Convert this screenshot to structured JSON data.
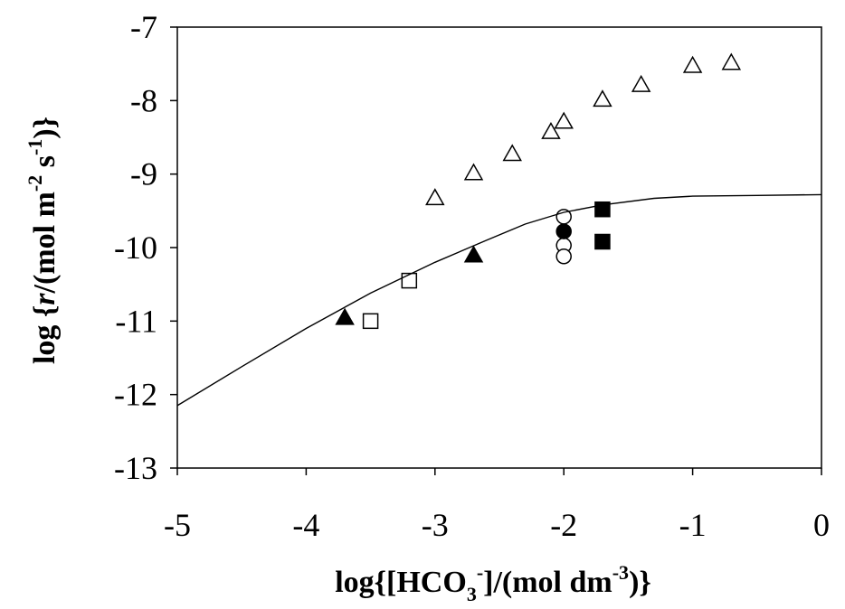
{
  "chart_data": {
    "type": "scatter",
    "title": "",
    "xlabel": "log{[HCO3-]/(mol dm-3)}",
    "ylabel": "log {r/(mol m-2 s-1)}",
    "xlabel_parts": {
      "main": "log{[HCO",
      "sub": "3",
      "sup": "-",
      "mid": "]/(mol dm",
      "sup2": "-3",
      "end": ")}"
    },
    "ylabel_parts": {
      "pre": "log {",
      "italic": "r",
      "mid": "/(mol m",
      "sup1": "-2",
      "mid2": " s",
      "sup2": "-1",
      "end": ")}"
    },
    "xlim": [
      -5,
      0
    ],
    "ylim": [
      -13,
      -7
    ],
    "x_ticks": [
      -5,
      -4,
      -3,
      -2,
      -1,
      0
    ],
    "x_tick_labels": [
      "-5",
      "-4",
      "-3",
      "-2",
      "-1",
      "0"
    ],
    "y_ticks": [
      -7,
      -8,
      -9,
      -10,
      -11,
      -12,
      -13
    ],
    "y_tick_labels": [
      "-7",
      "-8",
      "-9",
      "-10",
      "-11",
      "-12",
      "-13"
    ],
    "grid": false,
    "legend": "none",
    "series": [
      {
        "marker": "triangle-open",
        "x": [
          -3.0,
          -2.7,
          -2.4,
          -2.1,
          -2.0,
          -1.7,
          -1.4,
          -1.0,
          -0.7
        ],
        "y": [
          -9.32,
          -8.98,
          -8.72,
          -8.42,
          -8.28,
          -7.98,
          -7.78,
          -7.52,
          -7.48
        ]
      },
      {
        "marker": "triangle-filled",
        "x": [
          -3.7,
          -2.7
        ],
        "y": [
          -10.95,
          -10.1
        ]
      },
      {
        "marker": "square-open",
        "x": [
          -3.5,
          -3.2
        ],
        "y": [
          -11.0,
          -10.45
        ]
      },
      {
        "marker": "square-filled",
        "x": [
          -1.7,
          -1.7
        ],
        "y": [
          -9.48,
          -9.92
        ]
      },
      {
        "marker": "circle-open",
        "x": [
          -2.0,
          -2.0,
          -2.0
        ],
        "y": [
          -9.58,
          -9.97,
          -10.12
        ]
      },
      {
        "marker": "circle-filled",
        "x": [
          -2.0
        ],
        "y": [
          -9.78
        ]
      },
      {
        "marker": "line",
        "x": [
          -5.0,
          -4.5,
          -4.0,
          -3.5,
          -3.0,
          -2.6,
          -2.3,
          -2.0,
          -1.7,
          -1.3,
          -1.0,
          -0.5,
          0.0
        ],
        "y": [
          -12.15,
          -11.62,
          -11.1,
          -10.62,
          -10.2,
          -9.9,
          -9.68,
          -9.52,
          -9.42,
          -9.33,
          -9.3,
          -9.29,
          -9.28
        ]
      }
    ]
  }
}
